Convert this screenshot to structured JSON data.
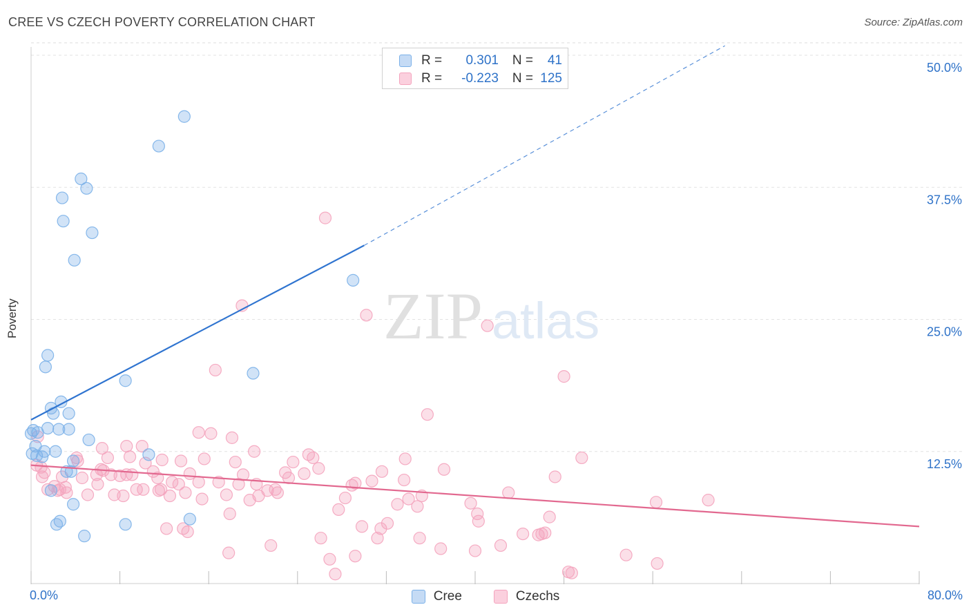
{
  "header": {
    "title": "CREE VS CZECH POVERTY CORRELATION CHART",
    "source": "Source: ZipAtlas.com"
  },
  "watermark": {
    "part1": "ZIP",
    "part2": "atlas"
  },
  "legend_top": {
    "rows": [
      {
        "r_label": "R =",
        "r_value": "0.301",
        "n_label": "N =",
        "n_value": "41"
      },
      {
        "r_label": "R =",
        "r_value": "-0.223",
        "n_label": "N =",
        "n_value": "125"
      }
    ]
  },
  "chart_data": {
    "type": "scatter",
    "title": "CREE VS CZECH POVERTY CORRELATION CHART",
    "xlabel": "",
    "ylabel": "Poverty",
    "xlim": [
      0,
      80
    ],
    "ylim": [
      0,
      50
    ],
    "x_tick_labels": [
      "0.0%",
      "80.0%"
    ],
    "y_ticks": [
      12.5,
      25.0,
      37.5,
      50.0
    ],
    "y_tick_labels": [
      "12.5%",
      "25.0%",
      "37.5%",
      "50.0%"
    ],
    "grid": true,
    "legend_position": "bottom-center",
    "series": [
      {
        "name": "Cree",
        "color": "#7ab0e8",
        "line_color": "#2f74d0",
        "r": 0.301,
        "n": 41,
        "trend": {
          "x0": 0,
          "y0": 15.5,
          "x1": 30,
          "y1": 32.0,
          "dashed_to_x": 62.5,
          "dashed_to_y": 50.9
        },
        "points": [
          [
            13.8,
            44.2
          ],
          [
            11.5,
            41.4
          ],
          [
            4.5,
            38.3
          ],
          [
            5.0,
            37.4
          ],
          [
            2.8,
            36.5
          ],
          [
            2.9,
            34.3
          ],
          [
            5.5,
            33.2
          ],
          [
            3.9,
            30.6
          ],
          [
            29.0,
            28.7
          ],
          [
            1.5,
            21.6
          ],
          [
            1.3,
            20.5
          ],
          [
            8.5,
            19.2
          ],
          [
            20.0,
            19.9
          ],
          [
            2.7,
            17.2
          ],
          [
            1.8,
            16.6
          ],
          [
            2.0,
            16.1
          ],
          [
            3.4,
            16.1
          ],
          [
            0.2,
            14.5
          ],
          [
            0.6,
            14.3
          ],
          [
            1.5,
            14.7
          ],
          [
            2.5,
            14.6
          ],
          [
            3.4,
            14.6
          ],
          [
            5.2,
            13.6
          ],
          [
            0.4,
            13.0
          ],
          [
            1.2,
            12.5
          ],
          [
            2.2,
            12.5
          ],
          [
            10.6,
            12.2
          ],
          [
            0.5,
            12.1
          ],
          [
            1.0,
            12.0
          ],
          [
            3.8,
            11.6
          ],
          [
            3.2,
            10.6
          ],
          [
            3.6,
            10.6
          ],
          [
            1.8,
            8.8
          ],
          [
            3.8,
            7.5
          ],
          [
            2.6,
            5.9
          ],
          [
            2.3,
            5.6
          ],
          [
            14.3,
            6.1
          ],
          [
            8.5,
            5.6
          ],
          [
            4.8,
            4.5
          ],
          [
            0.1,
            12.3
          ],
          [
            0.0,
            14.2
          ]
        ]
      },
      {
        "name": "Czechs",
        "color": "#f4a3bd",
        "line_color": "#e2688f",
        "r": -0.223,
        "n": 125,
        "trend": {
          "x0": 0,
          "y0": 11.2,
          "x1": 80,
          "y1": 5.4
        },
        "points": [
          [
            26.5,
            34.6
          ],
          [
            19.0,
            26.3
          ],
          [
            30.2,
            25.4
          ],
          [
            41.1,
            24.4
          ],
          [
            16.6,
            20.2
          ],
          [
            48.0,
            19.6
          ],
          [
            35.7,
            16.0
          ],
          [
            15.1,
            14.3
          ],
          [
            16.2,
            14.2
          ],
          [
            18.1,
            13.8
          ],
          [
            0.6,
            13.9
          ],
          [
            8.6,
            13.0
          ],
          [
            10.0,
            13.0
          ],
          [
            20.1,
            12.5
          ],
          [
            25.0,
            12.2
          ],
          [
            6.9,
            11.9
          ],
          [
            8.9,
            12.0
          ],
          [
            15.6,
            11.8
          ],
          [
            11.8,
            11.7
          ],
          [
            13.5,
            11.6
          ],
          [
            18.4,
            11.5
          ],
          [
            23.6,
            11.5
          ],
          [
            4.1,
            11.9
          ],
          [
            25.4,
            11.9
          ],
          [
            33.7,
            11.8
          ],
          [
            49.6,
            11.9
          ],
          [
            10.3,
            11.4
          ],
          [
            6.5,
            10.7
          ],
          [
            7.2,
            10.3
          ],
          [
            1.0,
            10.1
          ],
          [
            5.9,
            10.3
          ],
          [
            8.0,
            10.2
          ],
          [
            8.6,
            10.3
          ],
          [
            11.0,
            10.6
          ],
          [
            14.3,
            10.4
          ],
          [
            19.1,
            10.3
          ],
          [
            22.9,
            10.5
          ],
          [
            24.6,
            10.4
          ],
          [
            37.2,
            10.8
          ],
          [
            31.6,
            10.6
          ],
          [
            0.5,
            11.2
          ],
          [
            2.8,
            10.1
          ],
          [
            4.6,
            10.0
          ],
          [
            6.0,
            9.4
          ],
          [
            11.4,
            10.0
          ],
          [
            12.7,
            9.6
          ],
          [
            15.1,
            9.6
          ],
          [
            16.9,
            9.6
          ],
          [
            18.7,
            9.4
          ],
          [
            20.3,
            9.4
          ],
          [
            23.2,
            10.0
          ],
          [
            28.9,
            9.3
          ],
          [
            30.7,
            9.7
          ],
          [
            33.6,
            9.8
          ],
          [
            47.2,
            10.1
          ],
          [
            2.1,
            9.2
          ],
          [
            2.6,
            8.9
          ],
          [
            3.2,
            8.6
          ],
          [
            5.1,
            8.4
          ],
          [
            8.3,
            8.3
          ],
          [
            9.5,
            8.9
          ],
          [
            11.5,
            8.8
          ],
          [
            11.7,
            8.9
          ],
          [
            12.5,
            8.3
          ],
          [
            13.9,
            8.6
          ],
          [
            15.4,
            8.0
          ],
          [
            17.6,
            8.4
          ],
          [
            19.7,
            7.9
          ],
          [
            20.5,
            8.3
          ],
          [
            21.3,
            8.8
          ],
          [
            22.0,
            8.9
          ],
          [
            22.2,
            8.6
          ],
          [
            28.3,
            8.1
          ],
          [
            33.0,
            7.5
          ],
          [
            34.0,
            8.0
          ],
          [
            34.8,
            7.3
          ],
          [
            35.2,
            8.3
          ],
          [
            39.6,
            7.6
          ],
          [
            43.0,
            8.6
          ],
          [
            56.3,
            7.7
          ],
          [
            61.0,
            7.9
          ],
          [
            1.2,
            10.5
          ],
          [
            2.4,
            8.8
          ],
          [
            6.3,
            10.8
          ],
          [
            9.1,
            10.3
          ],
          [
            13.3,
            9.4
          ],
          [
            17.9,
            6.6
          ],
          [
            27.7,
            7.0
          ],
          [
            29.8,
            5.4
          ],
          [
            31.5,
            5.2
          ],
          [
            40.2,
            6.6
          ],
          [
            40.3,
            5.9
          ],
          [
            46.7,
            6.3
          ],
          [
            12.2,
            5.2
          ],
          [
            13.7,
            5.2
          ],
          [
            14.1,
            4.9
          ],
          [
            26.1,
            4.3
          ],
          [
            31.2,
            4.3
          ],
          [
            35.0,
            4.3
          ],
          [
            44.3,
            4.7
          ],
          [
            45.7,
            4.6
          ],
          [
            46.0,
            4.7
          ],
          [
            46.3,
            4.8
          ],
          [
            42.3,
            3.6
          ],
          [
            36.9,
            3.3
          ],
          [
            21.6,
            3.6
          ],
          [
            17.8,
            2.9
          ],
          [
            40.0,
            3.1
          ],
          [
            29.2,
            2.6
          ],
          [
            26.9,
            2.3
          ],
          [
            53.6,
            2.7
          ],
          [
            56.4,
            1.9
          ],
          [
            48.4,
            1.1
          ],
          [
            48.7,
            1.0
          ],
          [
            27.4,
            0.9
          ],
          [
            3.1,
            9.1
          ],
          [
            1.5,
            8.9
          ],
          [
            10.1,
            8.9
          ],
          [
            7.5,
            8.4
          ],
          [
            4.2,
            11.6
          ],
          [
            0.9,
            11.0
          ],
          [
            25.9,
            10.9
          ],
          [
            29.2,
            9.5
          ],
          [
            32.1,
            5.7
          ],
          [
            6.4,
            12.8
          ]
        ]
      }
    ]
  },
  "legend_bottom": {
    "items": [
      "Cree",
      "Czechs"
    ]
  }
}
